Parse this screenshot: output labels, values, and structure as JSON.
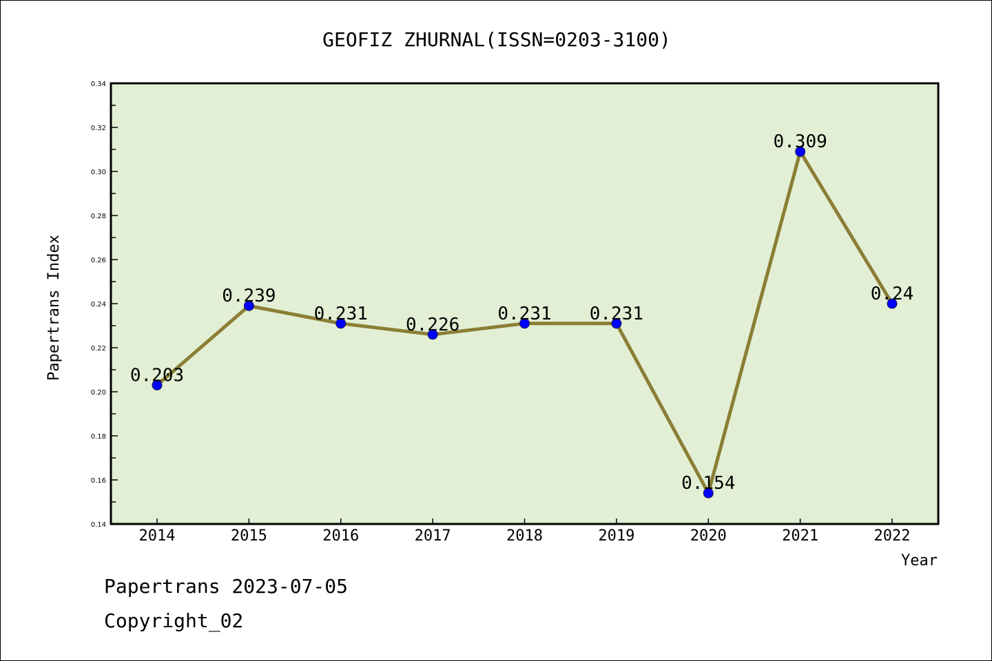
{
  "chart_data": {
    "type": "line",
    "title": "GEOFIZ ZHURNAL(ISSN=0203-3100)",
    "xlabel": "Year",
    "ylabel": "Papertrans Index",
    "categories": [
      "2014",
      "2015",
      "2016",
      "2017",
      "2018",
      "2019",
      "2020",
      "2021",
      "2022"
    ],
    "values": [
      0.203,
      0.239,
      0.231,
      0.226,
      0.231,
      0.231,
      0.154,
      0.309,
      0.24
    ],
    "data_labels": [
      "0.203",
      "0.239",
      "0.231",
      "0.226",
      "0.231",
      "0.231",
      "0.154",
      "0.309",
      "0.24"
    ],
    "ylim": [
      0.14,
      0.34
    ],
    "yticks": [
      "0.14",
      "0.16",
      "0.18",
      "0.20",
      "0.22",
      "0.24",
      "0.26",
      "0.28",
      "0.30",
      "0.32",
      "0.34"
    ],
    "grid": false,
    "colors": {
      "line": "#8B7E35",
      "marker": "#0000FF",
      "plot_bg": "#E2EFD5"
    }
  },
  "footer": {
    "line1": "Papertrans 2023-07-05",
    "line2": "Copyright_02"
  }
}
